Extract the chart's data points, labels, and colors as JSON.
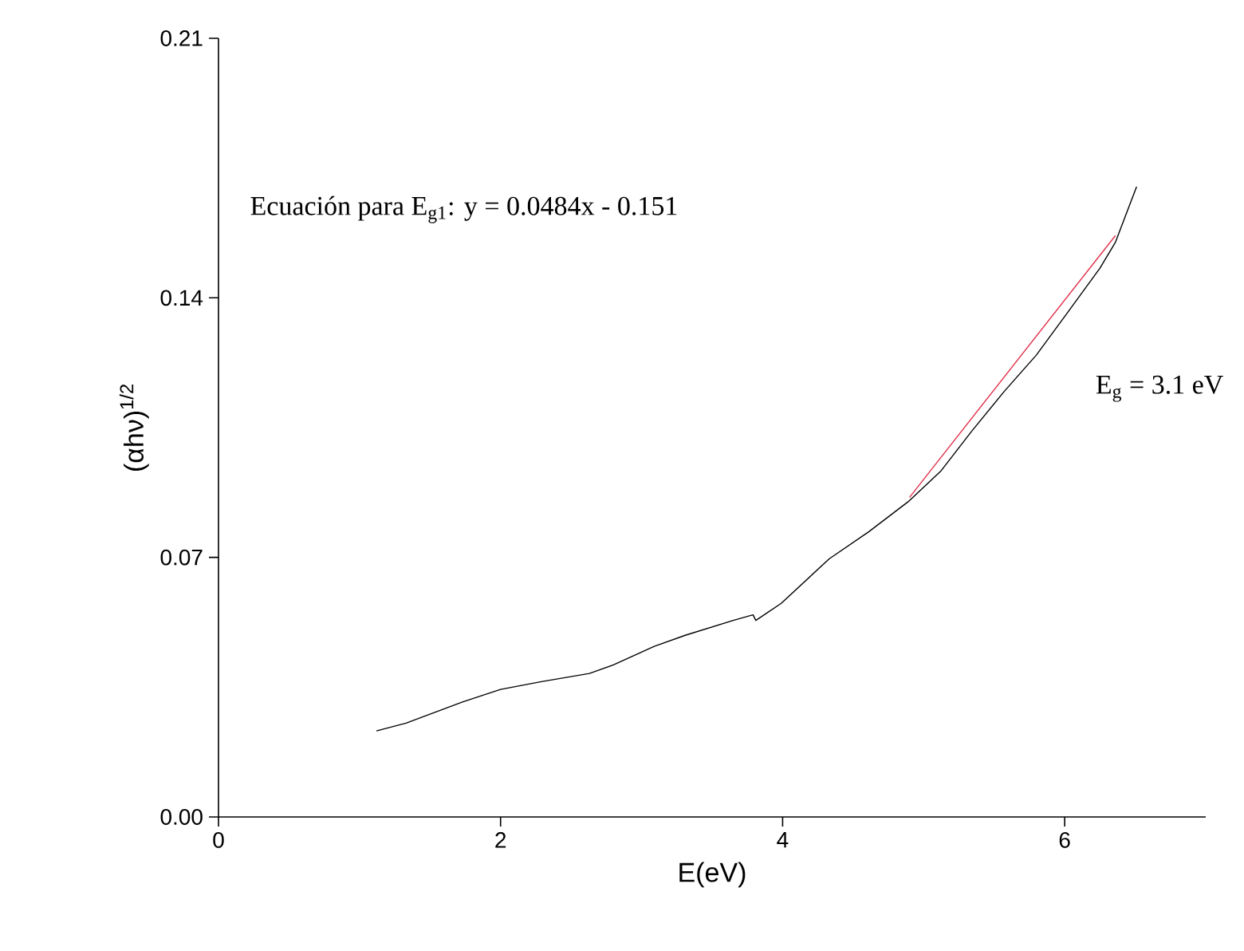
{
  "chart_data": {
    "type": "line",
    "xlabel": "E(eV)",
    "ylabel": "(αhν)$^{1/2}$",
    "annotations": [
      "Ecuación para E$_{g1}$: y = 0.0484x - 0.151",
      "E$_{g}$ = 3.1 eV"
    ],
    "xlim": [
      0,
      7
    ],
    "ylim": [
      0,
      0.21
    ],
    "xticks": [
      0,
      2,
      4,
      6
    ],
    "yticks": [
      {
        "value": 0,
        "label": "0.00"
      },
      {
        "value": 0.07,
        "label": "0.07"
      },
      {
        "value": 0.14,
        "label": "0.14"
      },
      {
        "value": 0.21,
        "label": "0.21"
      }
    ],
    "grid": false,
    "series": [
      {
        "color": "#000000",
        "x": [
          1.12,
          1.33,
          1.73,
          2.0,
          2.29,
          2.63,
          2.8,
          3.09,
          3.31,
          3.65,
          3.79,
          3.81,
          3.99,
          4.33,
          4.61,
          4.89,
          5.12,
          5.34,
          5.57,
          5.8,
          6.02,
          6.25,
          6.36,
          6.51
        ],
        "values": [
          0.0232,
          0.0253,
          0.031,
          0.0344,
          0.0365,
          0.0387,
          0.041,
          0.046,
          0.049,
          0.053,
          0.0545,
          0.053,
          0.0576,
          0.0696,
          0.0769,
          0.085,
          0.0932,
          0.104,
          0.1147,
          0.1246,
          0.136,
          0.148,
          0.155,
          0.17
        ]
      },
      {
        "color": "#e0304a",
        "x": [
          4.9,
          6.36
        ],
        "values": [
          0.0862,
          0.1568
        ]
      }
    ]
  }
}
